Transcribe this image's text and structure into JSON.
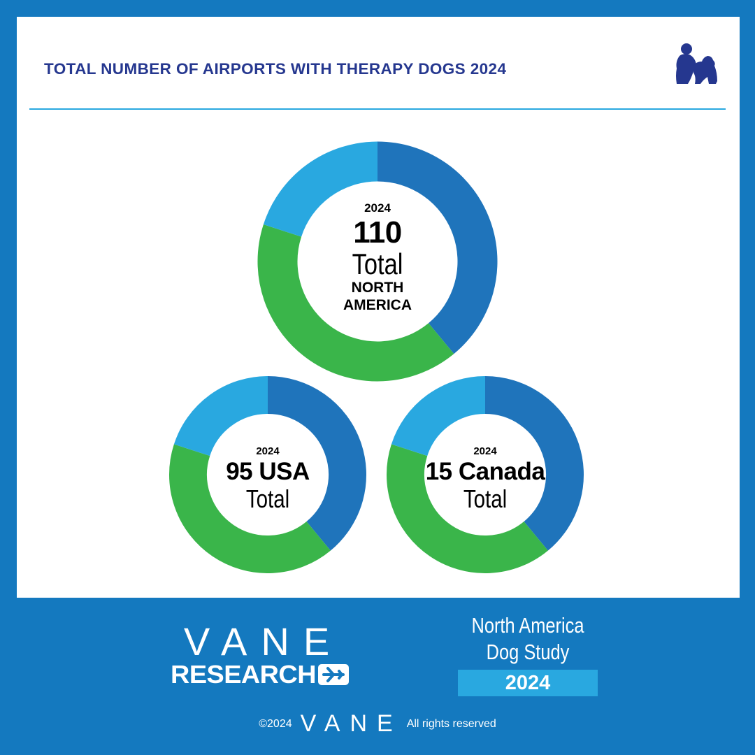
{
  "title": "TOTAL NUMBER OF AIRPORTS WITH THERAPY DOGS 2024",
  "colors": {
    "background": "#1479bf",
    "title": "#25378f",
    "divider": "#29a8e0",
    "segment_dark_blue": "#1f74bb",
    "segment_green": "#3ab54a",
    "segment_light_blue": "#29a8e0"
  },
  "icons": {
    "header": "therapy-dog-with-person-icon",
    "logo": "airplane-icon"
  },
  "chart_data": [
    {
      "type": "pie",
      "label_year": "2024",
      "label_value": "110",
      "label_total": "Total",
      "label_region": [
        "NORTH",
        "AMERICA"
      ],
      "value": 110,
      "segments": [
        {
          "color": "#1f74bb",
          "fraction": 0.39
        },
        {
          "color": "#3ab54a",
          "fraction": 0.41
        },
        {
          "color": "#29a8e0",
          "fraction": 0.2
        }
      ]
    },
    {
      "type": "pie",
      "label_year": "2024",
      "label_value": "95 USA",
      "label_total": "Total",
      "value": 95,
      "segments": [
        {
          "color": "#1f74bb",
          "fraction": 0.39
        },
        {
          "color": "#3ab54a",
          "fraction": 0.41
        },
        {
          "color": "#29a8e0",
          "fraction": 0.2
        }
      ]
    },
    {
      "type": "pie",
      "label_year": "2024",
      "label_value": "15 Canada",
      "label_total": "Total",
      "value": 15,
      "segments": [
        {
          "color": "#1f74bb",
          "fraction": 0.39
        },
        {
          "color": "#3ab54a",
          "fraction": 0.41
        },
        {
          "color": "#29a8e0",
          "fraction": 0.2
        }
      ]
    }
  ],
  "footer": {
    "logo_top": "VANE",
    "logo_bottom": "RESEARCH",
    "study_line1": "North America",
    "study_line2": "Dog Study",
    "study_year": "2024",
    "copyright_left": "©2024",
    "copyright_brand": "VANE",
    "copyright_right": "All rights reserved"
  }
}
